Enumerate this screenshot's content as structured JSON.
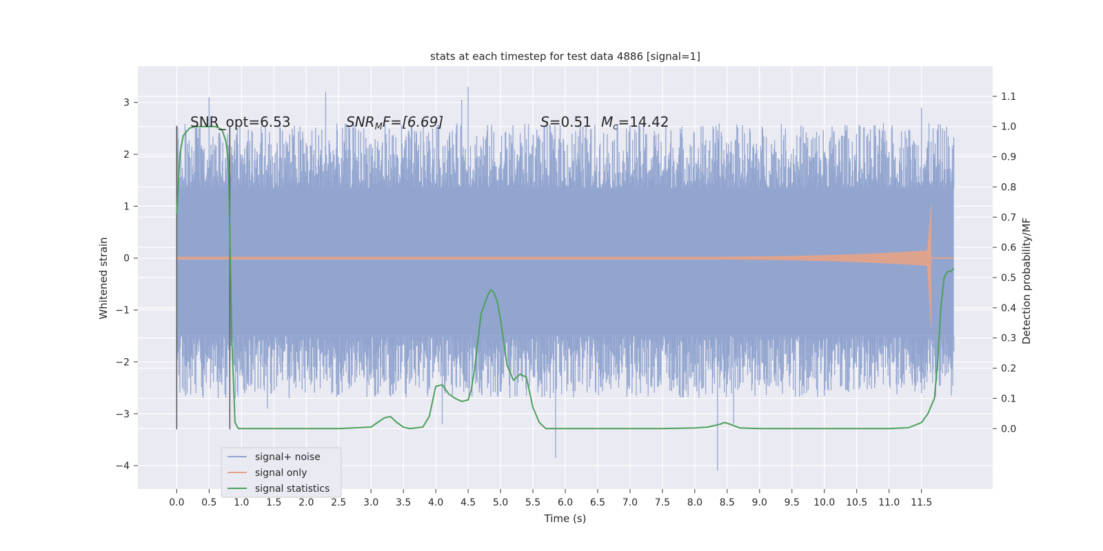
{
  "chart_data": {
    "type": "line",
    "title": "stats at each timestep for test data 4886 [signal=1]",
    "xlabel": "Time (s)",
    "ylabel": "Whitened strain",
    "ylabel_right": "Detection probability/MF",
    "xlim": [
      -0.6,
      12.6
    ],
    "ylim": [
      -4.45,
      3.7
    ],
    "ylim_right": [
      -0.2,
      1.2
    ],
    "x_ticks": [
      "0.0",
      "0.5",
      "1.0",
      "1.5",
      "2.0",
      "2.5",
      "3.0",
      "3.5",
      "4.0",
      "4.5",
      "5.0",
      "5.5",
      "6.0",
      "6.5",
      "7.0",
      "7.5",
      "8.0",
      "8.5",
      "9.0",
      "9.5",
      "10.0",
      "10.5",
      "11.0",
      "11.5"
    ],
    "y_ticks": [
      "3",
      "2",
      "1",
      "0",
      "−1",
      "−2",
      "−3",
      "−4"
    ],
    "y_ticks_right": [
      "1.1",
      "1.0",
      "0.9",
      "0.8",
      "0.7",
      "0.6",
      "0.5",
      "0.4",
      "0.3",
      "0.2",
      "0.1",
      "0.0"
    ],
    "grid": true,
    "legend_position": "bottom-left",
    "annotations": {
      "snr_opt": "SNR_opt=6.53",
      "snr_mf_main": "SNR",
      "snr_mf_sub": "M",
      "snr_mf_rest": "F=[6.69]",
      "s_label": "S",
      "s_value": "=0.51",
      "mc_label": "M",
      "mc_sub": "c",
      "mc_value": "=14.42"
    },
    "window_markers": [
      0.0,
      0.82
    ],
    "series": [
      {
        "name": "signal+ noise",
        "color": "#92a5cf",
        "kind": "noise-band",
        "t_range": [
          0.0,
          12.0
        ],
        "core_range": [
          -1.5,
          1.35
        ],
        "typical_peak": [
          -2.7,
          2.6
        ],
        "extreme_min": -4.1,
        "extreme_max": 3.3
      },
      {
        "name": "signal only",
        "color": "#e3a38a",
        "kind": "chirp",
        "t_range": [
          0.0,
          12.0
        ],
        "merger_time": 11.65,
        "peak_amplitude": 1.05,
        "min_amplitude": -1.35
      },
      {
        "name": "signal statistics",
        "color": "#4c9f5b",
        "axis": "right",
        "x": [
          0.0,
          0.05,
          0.1,
          0.2,
          0.3,
          0.4,
          0.5,
          0.6,
          0.7,
          0.76,
          0.8,
          0.85,
          0.9,
          0.95,
          1.0,
          1.5,
          2.0,
          2.5,
          3.0,
          3.1,
          3.2,
          3.3,
          3.35,
          3.4,
          3.5,
          3.6,
          3.8,
          3.9,
          4.0,
          4.1,
          4.15,
          4.2,
          4.3,
          4.4,
          4.5,
          4.55,
          4.6,
          4.7,
          4.8,
          4.85,
          4.9,
          4.95,
          5.0,
          5.1,
          5.2,
          5.3,
          5.4,
          5.5,
          5.6,
          5.7,
          5.8,
          6.0,
          7.0,
          7.5,
          8.0,
          8.2,
          8.4,
          8.45,
          8.5,
          8.6,
          8.7,
          9.0,
          9.5,
          10.0,
          10.5,
          11.0,
          11.3,
          11.5,
          11.6,
          11.7,
          11.75,
          11.8,
          11.85,
          11.9,
          11.95,
          12.0
        ],
        "y": [
          0.71,
          0.91,
          0.97,
          0.995,
          1.0,
          1.0,
          1.0,
          1.0,
          0.99,
          0.95,
          0.88,
          0.3,
          0.02,
          0.0,
          0.0,
          0.0,
          0.0,
          0.0,
          0.005,
          0.02,
          0.035,
          0.04,
          0.03,
          0.02,
          0.005,
          0.0,
          0.005,
          0.04,
          0.14,
          0.145,
          0.13,
          0.115,
          0.1,
          0.09,
          0.095,
          0.13,
          0.2,
          0.38,
          0.44,
          0.46,
          0.45,
          0.42,
          0.36,
          0.21,
          0.16,
          0.18,
          0.17,
          0.07,
          0.02,
          0.0,
          0.0,
          0.0,
          0.0,
          0.0,
          0.002,
          0.005,
          0.015,
          0.02,
          0.018,
          0.01,
          0.002,
          0.0,
          0.0,
          0.0,
          0.0,
          0.0,
          0.003,
          0.02,
          0.05,
          0.1,
          0.22,
          0.4,
          0.5,
          0.52,
          0.52,
          0.53
        ]
      }
    ]
  }
}
